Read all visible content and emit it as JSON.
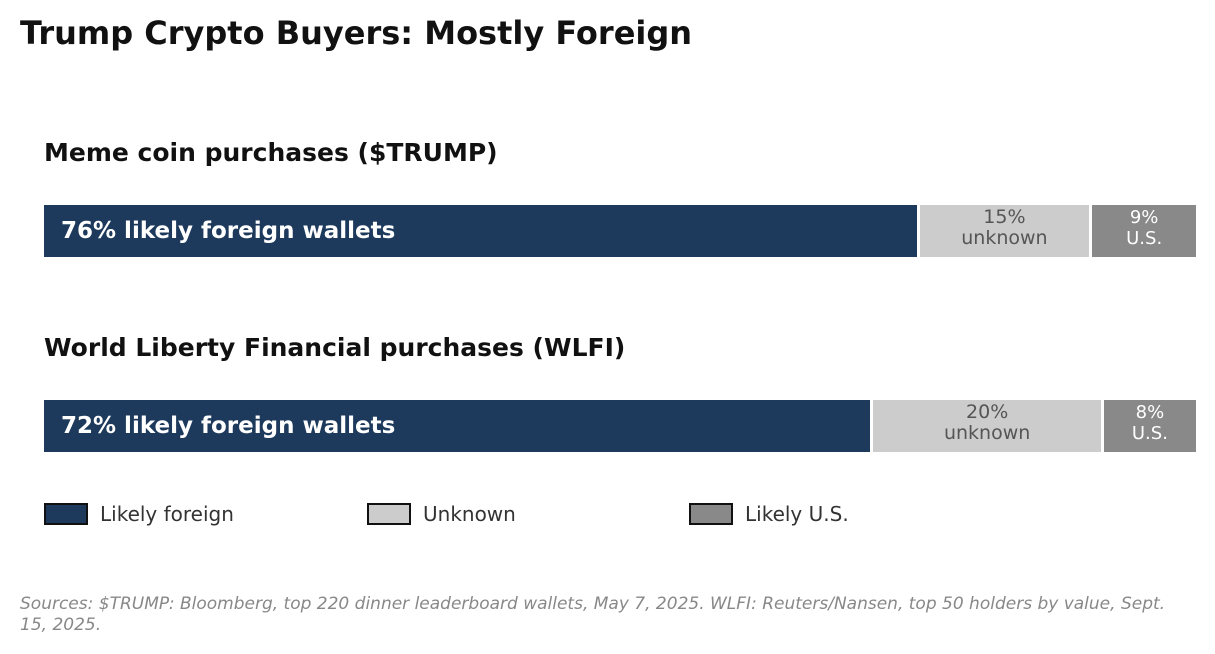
{
  "title": "Trump Crypto Buyers: Mostly Foreign",
  "source": "Sources: $TRUMP: Bloomberg, top 220 dinner leaderboard wallets, May 7, 2025. WLFI: Reuters/Nansen, top 50 holders by value, Sept. 15, 2025.",
  "colors": {
    "foreign": "#1d3a5c",
    "unknown": "#cccccc",
    "us": "#898989"
  },
  "chart_data": {
    "type": "bar",
    "orientation": "horizontal",
    "stacked": true,
    "normalized": true,
    "categories": [
      "Meme coin purchases ($TRUMP)",
      "World Liberty Financial purchases (WLFI)"
    ],
    "series": [
      {
        "name": "Likely foreign",
        "values": [
          76,
          72
        ]
      },
      {
        "name": "Unknown",
        "values": [
          15,
          20
        ]
      },
      {
        "name": "Likely U.S.",
        "values": [
          9,
          8
        ]
      }
    ],
    "panels": [
      {
        "title": "Meme coin purchases ($TRUMP)",
        "labels": {
          "foreign": "76% likely foreign wallets",
          "unknown_pct": "15%",
          "unknown_word": "unknown",
          "us_pct": "9%",
          "us_word": "U.S."
        }
      },
      {
        "title": "World Liberty Financial purchases (WLFI)",
        "labels": {
          "foreign": "72% likely foreign wallets",
          "unknown_pct": "20%",
          "unknown_word": "unknown",
          "us_pct": "8%",
          "us_word": "U.S."
        }
      }
    ],
    "legend": {
      "position": "bottom-left",
      "items": [
        "Likely foreign",
        "Unknown",
        "Likely U.S."
      ]
    }
  }
}
